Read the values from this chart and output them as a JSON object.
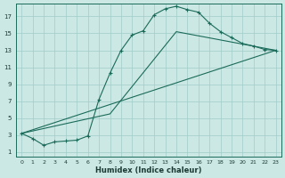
{
  "xlabel": "Humidex (Indice chaleur)",
  "bg_color": "#cce8e4",
  "grid_color": "#a0ccC8",
  "line_color": "#1a6b5a",
  "x_ticks": [
    0,
    1,
    2,
    3,
    4,
    5,
    6,
    7,
    8,
    9,
    10,
    11,
    12,
    13,
    14,
    15,
    16,
    17,
    18,
    19,
    20,
    21,
    22,
    23
  ],
  "y_ticks": [
    1,
    3,
    5,
    7,
    9,
    11,
    13,
    15,
    17
  ],
  "ylim": [
    0.5,
    18.5
  ],
  "xlim": [
    -0.5,
    23.5
  ],
  "curve1_x": [
    0,
    1,
    2,
    3,
    4,
    5,
    6,
    7,
    8,
    9,
    10,
    11,
    12,
    13,
    14,
    15,
    16,
    17,
    18,
    19,
    20,
    21,
    22,
    23
  ],
  "curve1_y": [
    3.2,
    2.6,
    1.8,
    2.2,
    2.3,
    2.4,
    2.9,
    7.2,
    10.3,
    13.0,
    14.8,
    15.3,
    17.2,
    17.9,
    18.2,
    17.8,
    17.5,
    16.2,
    15.2,
    14.5,
    13.8,
    13.5,
    13.1,
    13.0
  ],
  "line1_x": [
    0,
    23
  ],
  "line1_y": [
    3.2,
    13.0
  ],
  "line2_x": [
    0,
    8,
    14,
    23
  ],
  "line2_y": [
    3.2,
    5.5,
    15.2,
    13.0
  ]
}
